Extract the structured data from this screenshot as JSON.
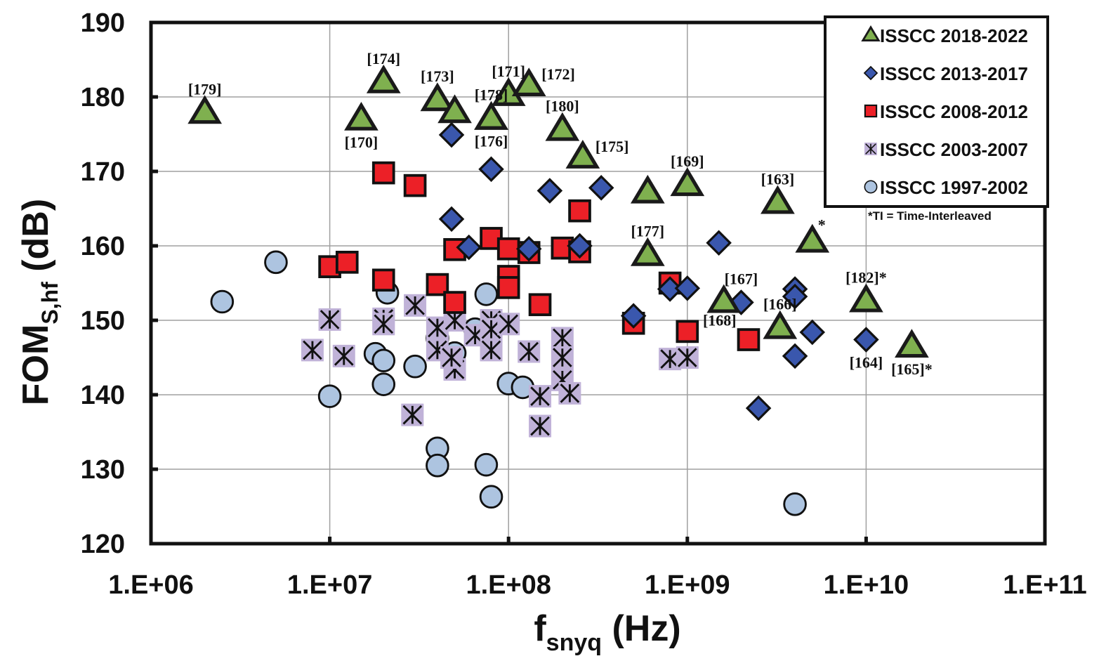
{
  "chart_data": {
    "type": "scatter",
    "title": "",
    "xlabel": {
      "main": "f",
      "sub": "snyq",
      "unit": " (Hz)"
    },
    "ylabel": {
      "main": "FOM",
      "sub": "S,hf",
      "unit": " (dB)"
    },
    "xscale": "log",
    "xlim": [
      1000000.0,
      100000000000.0
    ],
    "ylim": [
      120,
      190
    ],
    "xticks": [
      1000000.0,
      10000000.0,
      100000000.0,
      1000000000.0,
      10000000000.0,
      100000000000.0
    ],
    "xtick_labels": [
      "1.E+06",
      "1.E+07",
      "1.E+08",
      "1.E+09",
      "1.E+10",
      "1.E+11"
    ],
    "yticks": [
      120,
      130,
      140,
      150,
      160,
      170,
      180,
      190
    ],
    "ytick_labels": [
      "120",
      "130",
      "140",
      "150",
      "160",
      "170",
      "180",
      "190"
    ],
    "grid": true,
    "legend_position": "top-right",
    "footnote": "*TI = Time-Interleaved",
    "series": [
      {
        "name": "ISSCC 2018-2022",
        "marker": "triangle",
        "fill": "#7fb04f",
        "points": [
          {
            "x": 2000000.0,
            "y": 177.9,
            "label": "[179]",
            "label_pos": "above"
          },
          {
            "x": 20000000.0,
            "y": 182.0,
            "label": "[174]",
            "label_pos": "above"
          },
          {
            "x": 15000000.0,
            "y": 177.0,
            "label": "[170]",
            "label_pos": "below"
          },
          {
            "x": 40000000.0,
            "y": 179.6,
            "label": "[173]",
            "label_pos": "above"
          },
          {
            "x": 50000000.0,
            "y": 178.0,
            "label": "",
            "label_pos": ""
          },
          {
            "x": 80000000.0,
            "y": 177.1,
            "label": "[178]",
            "label_pos": "above"
          },
          {
            "x": 80000000.0,
            "y": 177.1,
            "label": "[176]",
            "label_pos": "below"
          },
          {
            "x": 100000000.0,
            "y": 180.3,
            "label": "[171]",
            "label_pos": "above"
          },
          {
            "x": 130000000.0,
            "y": 181.6,
            "label": "[172]",
            "label_pos": "right"
          },
          {
            "x": 200000000.0,
            "y": 175.6,
            "label": "[180]",
            "label_pos": "above"
          },
          {
            "x": 260000000.0,
            "y": 171.9,
            "label": "[175]",
            "label_pos": "right"
          },
          {
            "x": 600000000.0,
            "y": 167.2,
            "label": "",
            "label_pos": ""
          },
          {
            "x": 1000000000.0,
            "y": 168.2,
            "label": "[169]",
            "label_pos": "above"
          },
          {
            "x": 3200000000.0,
            "y": 165.8,
            "label": "[163]",
            "label_pos": "above"
          },
          {
            "x": 5000000000.0,
            "y": 160.6,
            "label": "*",
            "label_pos": "star"
          },
          {
            "x": 600000000.0,
            "y": 158.8,
            "label": "[177]",
            "label_pos": "above"
          },
          {
            "x": 1600000000.0,
            "y": 152.5,
            "label": "[168]",
            "label_pos": "belowleft"
          },
          {
            "x": 3300000000.0,
            "y": 149.0,
            "label": "[166]",
            "label_pos": "above"
          },
          {
            "x": 10000000000.0,
            "y": 152.6,
            "label": "[182]*",
            "label_pos": "above"
          },
          {
            "x": 18000000000.0,
            "y": 146.5,
            "label": "[165]*",
            "label_pos": "below"
          }
        ]
      },
      {
        "name": "ISSCC 2013-2017",
        "marker": "diamond",
        "fill": "#3a57ad",
        "points": [
          {
            "x": 48000000.0,
            "y": 174.9
          },
          {
            "x": 80000000.0,
            "y": 170.3
          },
          {
            "x": 48000000.0,
            "y": 163.6
          },
          {
            "x": 60000000.0,
            "y": 159.8
          },
          {
            "x": 170000000.0,
            "y": 167.4
          },
          {
            "x": 330000000.0,
            "y": 167.8
          },
          {
            "x": 250000000.0,
            "y": 160.0
          },
          {
            "x": 130000000.0,
            "y": 159.6
          },
          {
            "x": 500000000.0,
            "y": 150.6
          },
          {
            "x": 800000000.0,
            "y": 154.2
          },
          {
            "x": 1000000000.0,
            "y": 154.3
          },
          {
            "x": 1500000000.0,
            "y": 160.4
          },
          {
            "x": 2000000000.0,
            "y": 152.4,
            "label": "[167]",
            "label_pos": "above"
          },
          {
            "x": 4000000000.0,
            "y": 154.2
          },
          {
            "x": 4000000000.0,
            "y": 153.2
          },
          {
            "x": 5000000000.0,
            "y": 148.4
          },
          {
            "x": 4000000000.0,
            "y": 145.2
          },
          {
            "x": 2500000000.0,
            "y": 138.2
          },
          {
            "x": 10000000000.0,
            "y": 147.4,
            "label": "[164]",
            "label_pos": "below"
          }
        ]
      },
      {
        "name": "ISSCC 2008-2012",
        "marker": "square",
        "fill": "#ec2027",
        "points": [
          {
            "x": 20000000.0,
            "y": 169.8
          },
          {
            "x": 30000000.0,
            "y": 168.1
          },
          {
            "x": 10000000.0,
            "y": 157.2
          },
          {
            "x": 12500000.0,
            "y": 157.8
          },
          {
            "x": 20000000.0,
            "y": 155.4
          },
          {
            "x": 40000000.0,
            "y": 154.8
          },
          {
            "x": 50000000.0,
            "y": 159.5
          },
          {
            "x": 50000000.0,
            "y": 152.4
          },
          {
            "x": 80000000.0,
            "y": 161.0
          },
          {
            "x": 100000000.0,
            "y": 159.6
          },
          {
            "x": 130000000.0,
            "y": 159.1
          },
          {
            "x": 100000000.0,
            "y": 155.9
          },
          {
            "x": 100000000.0,
            "y": 154.4
          },
          {
            "x": 150000000.0,
            "y": 152.1
          },
          {
            "x": 200000000.0,
            "y": 159.7
          },
          {
            "x": 250000000.0,
            "y": 159.2
          },
          {
            "x": 250000000.0,
            "y": 164.7
          },
          {
            "x": 500000000.0,
            "y": 149.6
          },
          {
            "x": 800000000.0,
            "y": 155.0
          },
          {
            "x": 1000000000.0,
            "y": 148.5
          },
          {
            "x": 2200000000.0,
            "y": 147.4
          }
        ]
      },
      {
        "name": "ISSCC 2003-2007",
        "marker": "asterisk",
        "fill": "#c0b2d8",
        "points": [
          {
            "x": 10000000.0,
            "y": 150.1
          },
          {
            "x": 8000000.0,
            "y": 146.0
          },
          {
            "x": 12000000.0,
            "y": 145.2
          },
          {
            "x": 20000000.0,
            "y": 150.2
          },
          {
            "x": 20000000.0,
            "y": 149.5
          },
          {
            "x": 30000000.0,
            "y": 152.0
          },
          {
            "x": 29000000.0,
            "y": 137.3
          },
          {
            "x": 40000000.0,
            "y": 149.0
          },
          {
            "x": 40000000.0,
            "y": 146.0
          },
          {
            "x": 50000000.0,
            "y": 150.0
          },
          {
            "x": 50000000.0,
            "y": 143.4
          },
          {
            "x": 48000000.0,
            "y": 145.0
          },
          {
            "x": 65000000.0,
            "y": 148.0
          },
          {
            "x": 80000000.0,
            "y": 150.0
          },
          {
            "x": 80000000.0,
            "y": 148.8
          },
          {
            "x": 80000000.0,
            "y": 146.0
          },
          {
            "x": 100000000.0,
            "y": 149.5
          },
          {
            "x": 130000000.0,
            "y": 145.8
          },
          {
            "x": 150000000.0,
            "y": 139.8
          },
          {
            "x": 150000000.0,
            "y": 135.8
          },
          {
            "x": 200000000.0,
            "y": 147.6
          },
          {
            "x": 200000000.0,
            "y": 145.0
          },
          {
            "x": 200000000.0,
            "y": 142.0
          },
          {
            "x": 220000000.0,
            "y": 140.2
          },
          {
            "x": 800000000.0,
            "y": 144.8
          },
          {
            "x": 1000000000.0,
            "y": 145.0
          }
        ]
      },
      {
        "name": "ISSCC 1997-2002",
        "marker": "circle",
        "fill": "#adc4e0",
        "points": [
          {
            "x": 2500000.0,
            "y": 152.5
          },
          {
            "x": 5000000.0,
            "y": 157.8
          },
          {
            "x": 10000000.0,
            "y": 139.8
          },
          {
            "x": 18000000.0,
            "y": 145.5
          },
          {
            "x": 20000000.0,
            "y": 144.6
          },
          {
            "x": 20000000.0,
            "y": 141.4
          },
          {
            "x": 21000000.0,
            "y": 153.7
          },
          {
            "x": 30000000.0,
            "y": 143.8
          },
          {
            "x": 40000000.0,
            "y": 147.6
          },
          {
            "x": 50000000.0,
            "y": 145.6
          },
          {
            "x": 65000000.0,
            "y": 148.8
          },
          {
            "x": 75000000.0,
            "y": 153.5
          },
          {
            "x": 40000000.0,
            "y": 132.8
          },
          {
            "x": 40000000.0,
            "y": 130.5
          },
          {
            "x": 75000000.0,
            "y": 130.6
          },
          {
            "x": 80000000.0,
            "y": 126.3
          },
          {
            "x": 100000000.0,
            "y": 141.5
          },
          {
            "x": 120000000.0,
            "y": 141.0
          },
          {
            "x": 4000000000.0,
            "y": 125.3
          }
        ]
      }
    ]
  }
}
